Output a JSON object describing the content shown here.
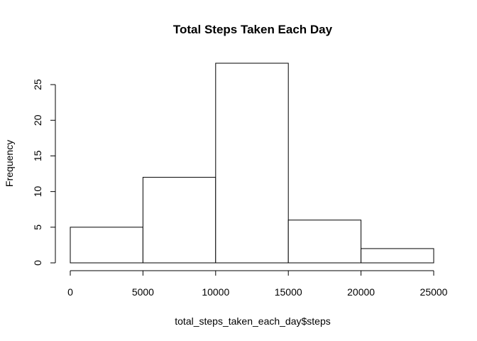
{
  "chart_data": {
    "type": "bar",
    "title": "Total Steps Taken Each Day",
    "xlabel": "total_steps_taken_each_day$steps",
    "ylabel": "Frequency",
    "bins": [
      {
        "from": 0,
        "to": 5000,
        "count": 5
      },
      {
        "from": 5000,
        "to": 10000,
        "count": 12
      },
      {
        "from": 10000,
        "to": 15000,
        "count": 28
      },
      {
        "from": 15000,
        "to": 20000,
        "count": 6
      },
      {
        "from": 20000,
        "to": 25000,
        "count": 2
      }
    ],
    "xlim": [
      0,
      25000
    ],
    "ylim": [
      0,
      28
    ],
    "xticks": [
      0,
      5000,
      10000,
      15000,
      20000,
      25000
    ],
    "yticks": [
      0,
      5,
      10,
      15,
      20,
      25
    ],
    "grid": false,
    "legend": "none"
  }
}
